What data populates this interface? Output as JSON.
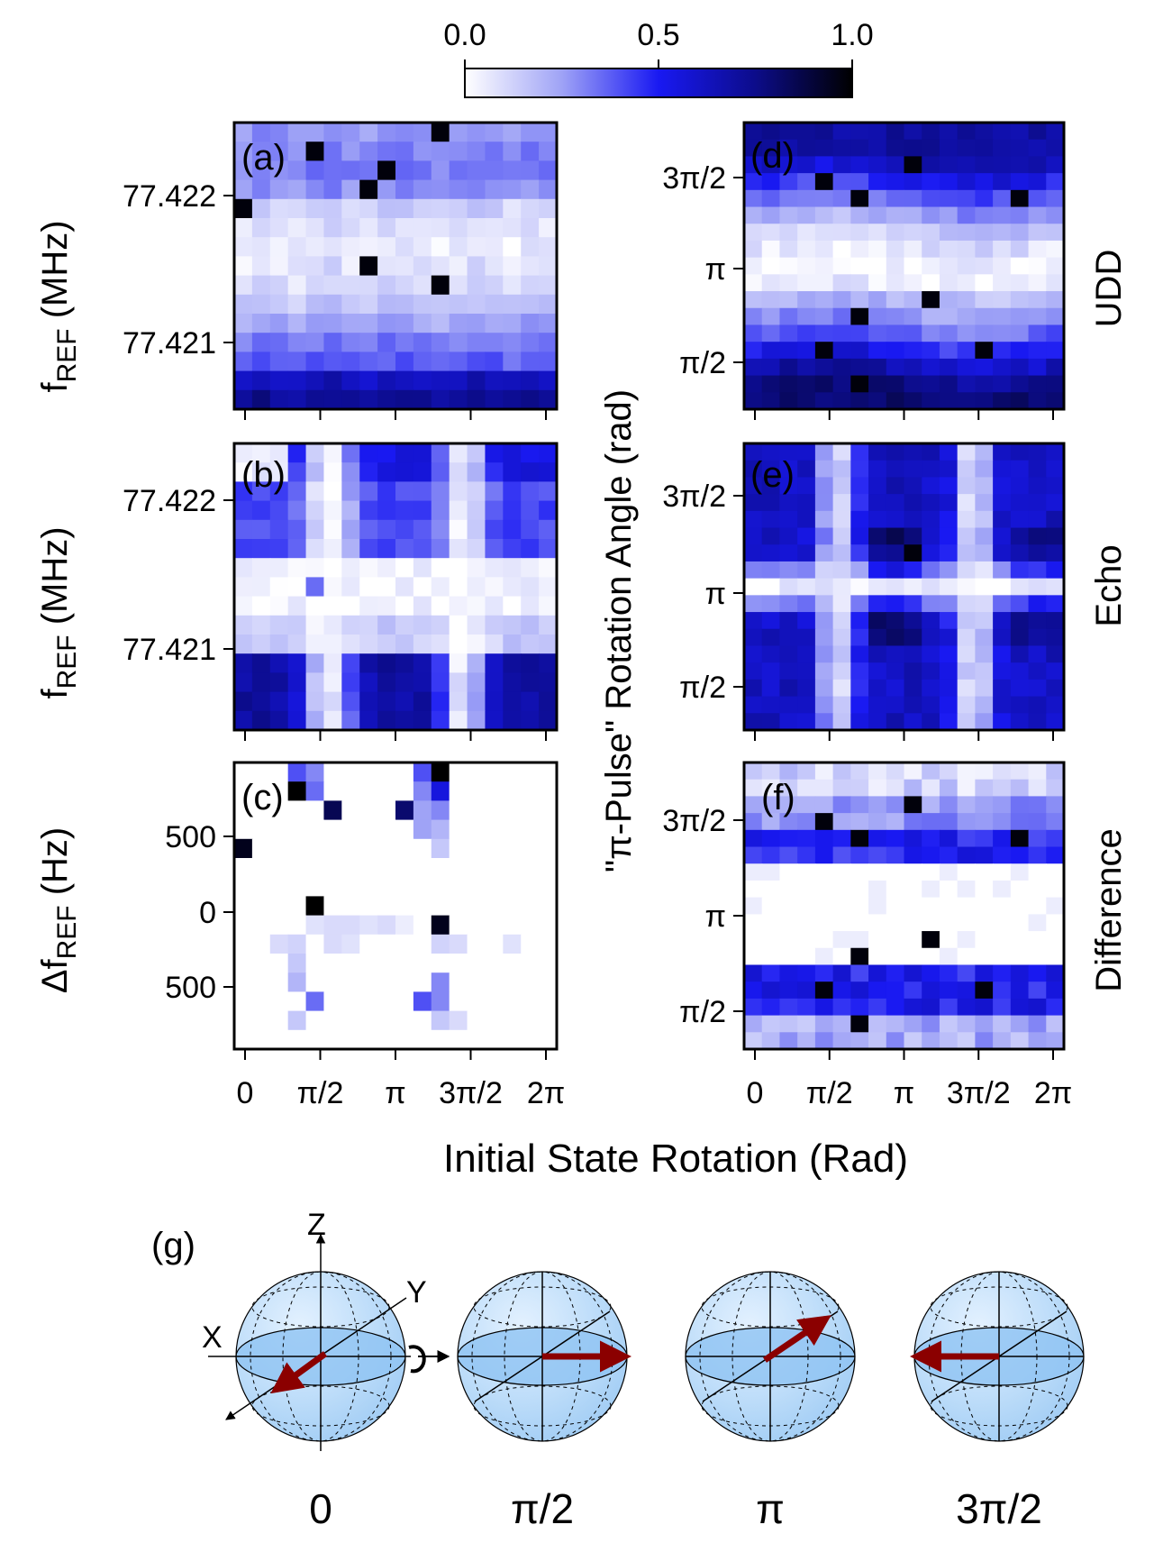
{
  "colorbar": {
    "ticks": [
      "0.0",
      "0.5",
      "1.0"
    ],
    "min": 0,
    "max": 1,
    "stops": [
      "#ffffff",
      "#9fa3f6",
      "#1919f2",
      "#0c0c8a",
      "#000000"
    ]
  },
  "labels": {
    "x_common": "Initial State Rotation (Rad)",
    "y_left_top": "f",
    "y_left_top_sub": "REF",
    "y_left_top_unit": " (MHz)",
    "y_left_mid": "f",
    "y_left_mid_sub": "REF",
    "y_left_mid_unit": " (MHz)",
    "y_left_bottom_pre": "Δf",
    "y_left_bottom_sub": "REF",
    "y_left_bottom_unit": " (Hz)",
    "y_right": "\"π-Pulse\" Rotation Angle (rad)",
    "right_row_labels": [
      "UDD",
      "Echo",
      "Difference"
    ]
  },
  "chart_data": [
    {
      "id": "a",
      "panel_label": "(a)",
      "type": "heatmap",
      "xlabel": "Initial State Rotation (Rad)",
      "ylabel": "fREF (MHz)",
      "x_ticks": [
        "0",
        "π/2",
        "π",
        "3π/2",
        "2π"
      ],
      "y_ticks": [
        "77.422",
        "77.421"
      ],
      "rows": [
        0.25,
        0.28,
        0.3,
        0.25,
        0.1,
        0.05,
        0.04,
        0.05,
        0.08,
        0.14,
        0.22,
        0.3,
        0.35,
        0.6,
        0.7
      ],
      "col_var": [
        0.0,
        0.05,
        0.02,
        0.0,
        0.03,
        0.06,
        0.02,
        0.0,
        0.04,
        0.05,
        0.03,
        0.0,
        0.02,
        0.05,
        0.03,
        0.0,
        0.04,
        0.02
      ],
      "dark": [
        [
          11,
          0
        ],
        [
          4,
          1
        ],
        [
          8,
          2
        ],
        [
          7,
          3
        ],
        [
          0,
          4
        ],
        [
          7,
          7
        ],
        [
          11,
          8
        ]
      ]
    },
    {
      "id": "b",
      "panel_label": "(b)",
      "type": "heatmap",
      "xlabel": "Initial State Rotation (Rad)",
      "ylabel": "fREF (MHz)",
      "x_ticks": [
        "0",
        "π/2",
        "π",
        "3π/2",
        "2π"
      ],
      "y_ticks": [
        "77.422",
        "77.421"
      ],
      "pattern": "echo-vertical",
      "spot": [
        4,
        7
      ]
    },
    {
      "id": "c",
      "panel_label": "(c)",
      "type": "heatmap",
      "xlabel": "Initial State Rotation (Rad)",
      "ylabel": "ΔfREF (Hz)",
      "x_ticks": [
        "0",
        "π/2",
        "π",
        "3π/2",
        "2π"
      ],
      "y_ticks": [
        "500",
        "0",
        "500"
      ],
      "sparse": [
        [
          3,
          0,
          0.4
        ],
        [
          4,
          0,
          0.3
        ],
        [
          3,
          1,
          0.55
        ],
        [
          4,
          1,
          0.35
        ],
        [
          10,
          0,
          0.4
        ],
        [
          11,
          0,
          0.3
        ],
        [
          10,
          1,
          0.3
        ],
        [
          11,
          1,
          0.55
        ],
        [
          10,
          2,
          0.25
        ],
        [
          11,
          2,
          0.3
        ],
        [
          10,
          3,
          0.25
        ],
        [
          11,
          3,
          0.2
        ],
        [
          11,
          4,
          0.15
        ],
        [
          4,
          8,
          0.08
        ],
        [
          5,
          8,
          0.1
        ],
        [
          6,
          8,
          0.1
        ],
        [
          7,
          8,
          0.08
        ],
        [
          8,
          8,
          0.1
        ],
        [
          9,
          8,
          0.05
        ],
        [
          2,
          9,
          0.1
        ],
        [
          3,
          9,
          0.12
        ],
        [
          5,
          9,
          0.1
        ],
        [
          6,
          9,
          0.08
        ],
        [
          11,
          9,
          0.12
        ],
        [
          12,
          9,
          0.1
        ],
        [
          15,
          9,
          0.08
        ],
        [
          3,
          10,
          0.15
        ],
        [
          3,
          11,
          0.2
        ],
        [
          4,
          12,
          0.35
        ],
        [
          11,
          11,
          0.3
        ],
        [
          10,
          12,
          0.4
        ],
        [
          11,
          12,
          0.3
        ],
        [
          3,
          13,
          0.15
        ],
        [
          11,
          13,
          0.15
        ],
        [
          12,
          13,
          0.1
        ]
      ],
      "dark": [
        [
          11,
          0,
          1.0
        ],
        [
          3,
          1,
          1.0
        ],
        [
          5,
          2,
          0.85
        ],
        [
          9,
          2,
          0.8
        ],
        [
          0,
          4,
          0.95
        ],
        [
          4,
          7,
          1.0
        ],
        [
          11,
          8,
          0.95
        ]
      ]
    },
    {
      "id": "d",
      "panel_label": "(d)",
      "type": "heatmap",
      "xlabel": "Initial State Rotation (Rad)",
      "ylabel": "\"π-Pulse\" Rotation Angle (rad)",
      "x_ticks": [
        "0",
        "π/2",
        "π",
        "3π/2",
        "2π"
      ],
      "y_ticks": [
        "3π/2",
        "π",
        "π/2"
      ],
      "row_label": "UDD",
      "pattern": "udd",
      "dark": [
        [
          4,
          3
        ],
        [
          6,
          4
        ],
        [
          9,
          2
        ],
        [
          15,
          4
        ],
        [
          6,
          11
        ],
        [
          10,
          10
        ],
        [
          4,
          13
        ],
        [
          13,
          13
        ],
        [
          6,
          15
        ]
      ]
    },
    {
      "id": "e",
      "panel_label": "(e)",
      "type": "heatmap",
      "xlabel": "Initial State Rotation (Rad)",
      "ylabel": "\"π-Pulse\" Rotation Angle (rad)",
      "x_ticks": [
        "0",
        "π/2",
        "π",
        "3π/2",
        "2π"
      ],
      "y_ticks": [
        "3π/2",
        "π",
        "π/2"
      ],
      "row_label": "Echo",
      "pattern": "echo-cross",
      "dark": [
        [
          9,
          6
        ]
      ]
    },
    {
      "id": "f",
      "panel_label": "(f)",
      "type": "heatmap",
      "xlabel": "Initial State Rotation (Rad)",
      "ylabel": "\"π-Pulse\" Rotation Angle (rad)",
      "x_ticks": [
        "0",
        "π/2",
        "π",
        "3π/2",
        "2π"
      ],
      "y_ticks": [
        "3π/2",
        "π",
        "π/2"
      ],
      "row_label": "Difference",
      "pattern": "difference",
      "dark": [
        [
          4,
          3
        ],
        [
          9,
          2
        ],
        [
          6,
          4
        ],
        [
          15,
          4
        ],
        [
          6,
          11
        ],
        [
          10,
          10
        ],
        [
          4,
          13
        ],
        [
          13,
          13
        ],
        [
          6,
          15
        ]
      ]
    }
  ],
  "bloch": {
    "panel_label": "(g)",
    "axis_labels": [
      "Z",
      "Y",
      "X"
    ],
    "spheres": [
      {
        "label": "0",
        "vector": "towards-viewer"
      },
      {
        "label": "π/2",
        "vector": "plus-x"
      },
      {
        "label": "π",
        "vector": "away-from-viewer"
      },
      {
        "label": "3π/2",
        "vector": "minus-x"
      }
    ],
    "vector_color": "#8b0000",
    "sphere_color": "#8fc3f2"
  }
}
